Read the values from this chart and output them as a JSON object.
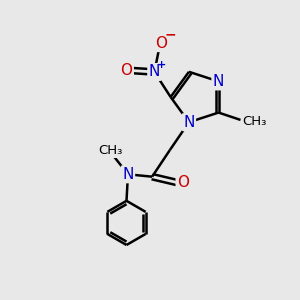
{
  "bg_color": "#e8e8e8",
  "bond_color": "#000000",
  "n_color": "#0000cc",
  "o_color": "#cc0000",
  "line_width": 1.8,
  "font_size_atoms": 11,
  "font_size_small": 9.5,
  "xlim": [
    0,
    10
  ],
  "ylim": [
    0,
    10
  ]
}
